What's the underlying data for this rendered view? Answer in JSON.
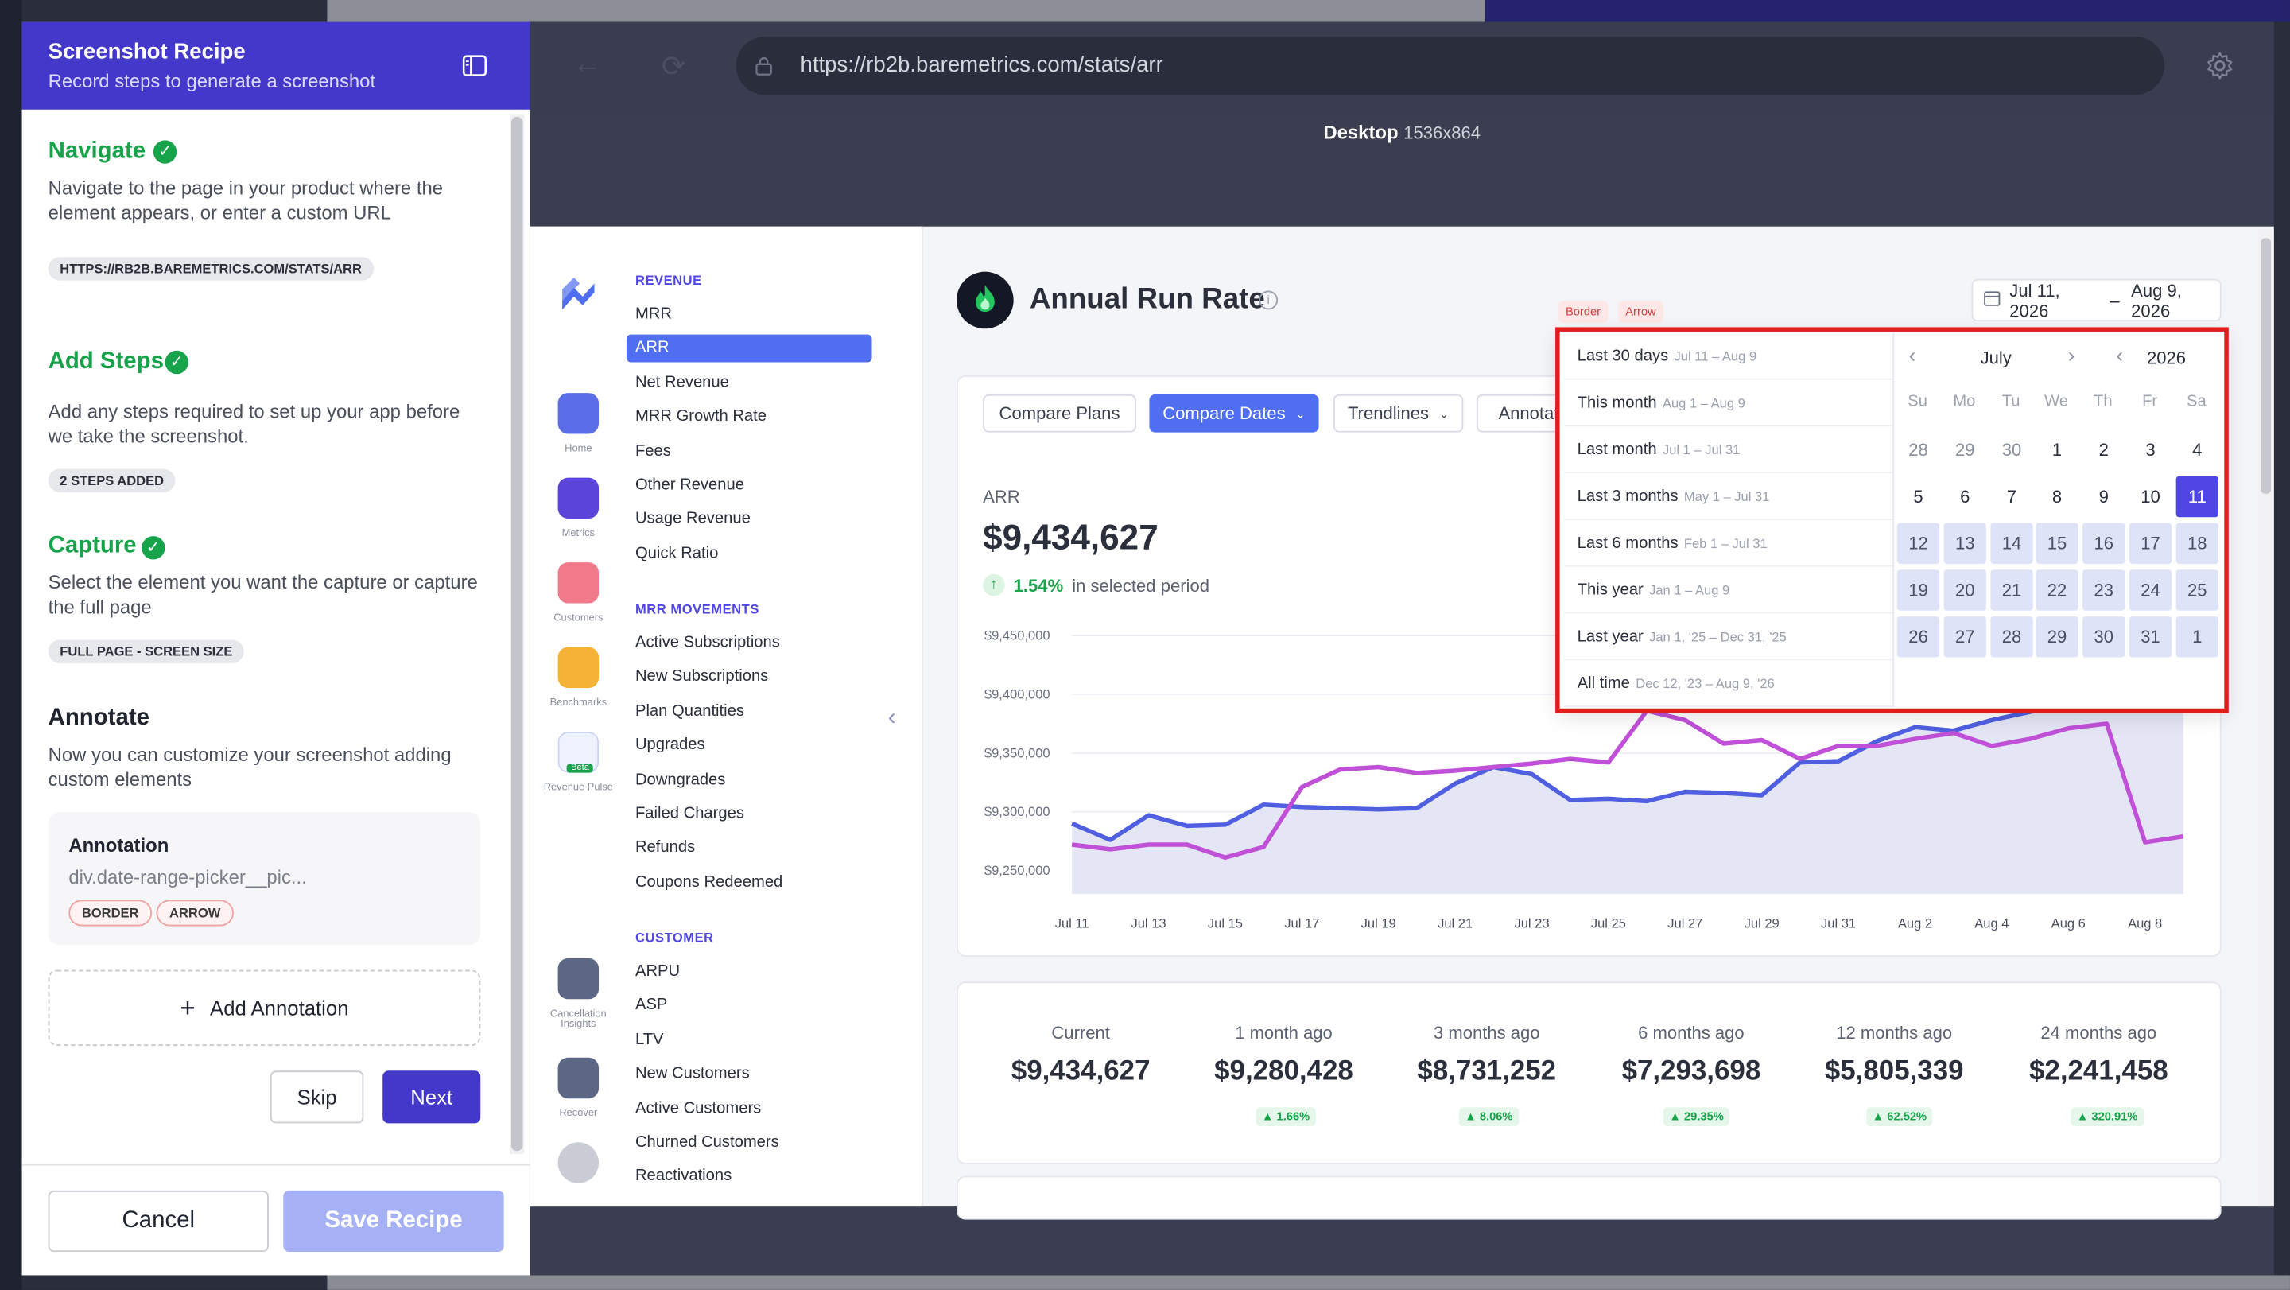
{
  "recipe": {
    "title": "Screenshot Recipe",
    "subtitle": "Record steps to generate a screenshot",
    "navigate": {
      "title": "Navigate",
      "desc": "Navigate to the page in your product where the element appears, or enter a custom URL",
      "chip": "HTTPS://RB2B.BAREMETRICS.COM/STATS/ARR"
    },
    "add_steps": {
      "title": "Add Steps",
      "desc": "Add any steps required to set up your app before we take the screenshot.",
      "chip": "2 STEPS ADDED"
    },
    "capture": {
      "title": "Capture",
      "desc": "Select the element you want the capture or capture the full page",
      "chip": "FULL PAGE - SCREEN SIZE"
    },
    "annotate": {
      "title": "Annotate",
      "desc": "Now you can customize your screenshot adding custom elements",
      "card_title": "Annotation",
      "card_selector": "div.date-range-picker__pic...",
      "tags": [
        "BORDER",
        "ARROW"
      ],
      "add_label": "Add Annotation"
    },
    "skip_label": "Skip",
    "next_label": "Next",
    "cancel_label": "Cancel",
    "save_label": "Save Recipe"
  },
  "browser": {
    "url": "https://rb2b.baremetrics.com/stats/arr",
    "device": "Desktop",
    "resolution": "1536x864"
  },
  "app": {
    "icons": [
      {
        "label": "Home",
        "icon": "home-icon",
        "color": "#5b6ee8"
      },
      {
        "label": "Metrics",
        "icon": "metrics-icon",
        "color": "#5b45d9"
      },
      {
        "label": "Customers",
        "icon": "customers-icon",
        "color": "#f07a8a"
      },
      {
        "label": "Benchmarks",
        "icon": "benchmarks-icon",
        "color": "#f5b335"
      },
      {
        "label": "Revenue Pulse",
        "icon": "pulse-icon",
        "color": "#4f6ef0",
        "badge": "Beta"
      },
      {
        "label": "Cancellation Insights",
        "icon": "cancellation-icon",
        "color": "#4a5578"
      },
      {
        "label": "Recover",
        "icon": "recover-icon",
        "color": "#4a5578"
      }
    ],
    "nav": {
      "revenue_head": "REVENUE",
      "revenue": [
        "MRR",
        "ARR",
        "Net Revenue",
        "MRR Growth Rate",
        "Fees",
        "Other Revenue",
        "Usage Revenue",
        "Quick Ratio"
      ],
      "movements_head": "MRR MOVEMENTS",
      "movements": [
        "Active Subscriptions",
        "New Subscriptions",
        "Plan Quantities",
        "Upgrades",
        "Downgrades",
        "Failed Charges",
        "Refunds",
        "Coupons Redeemed"
      ],
      "customer_head": "CUSTOMER",
      "customer": [
        "ARPU",
        "ASP",
        "LTV",
        "New Customers",
        "Active Customers",
        "Churned Customers",
        "Reactivations"
      ]
    },
    "page_title": "Annual Run Rate",
    "date_range": {
      "start": "Jul 11, 2026",
      "sep": "–",
      "end": "Aug 9, 2026"
    },
    "annotation_tags": [
      "Border",
      "Arrow"
    ],
    "toolbar": [
      "Compare Plans",
      "Compare Dates",
      "Trendlines",
      "Annotat"
    ],
    "metric": {
      "label": "ARR",
      "value": "$9,434,627",
      "delta": "1.54%",
      "delta_suffix": "in selected period"
    },
    "summary": [
      {
        "label": "Current",
        "value": "$9,434,627",
        "badge": ""
      },
      {
        "label": "1 month ago",
        "value": "$9,280,428",
        "badge": "1.66%"
      },
      {
        "label": "3 months ago",
        "value": "$8,731,252",
        "badge": "8.06%"
      },
      {
        "label": "6 months ago",
        "value": "$7,293,698",
        "badge": "29.35%"
      },
      {
        "label": "12 months ago",
        "value": "$5,805,339",
        "badge": "62.52%"
      },
      {
        "label": "24 months ago",
        "value": "$2,241,458",
        "badge": "320.91%"
      }
    ]
  },
  "calendar": {
    "presets": [
      {
        "label": "Last 30 days",
        "range": "Jul 11 – Aug 9"
      },
      {
        "label": "This month",
        "range": "Aug 1 – Aug 9"
      },
      {
        "label": "Last month",
        "range": "Jul 1 – Jul 31"
      },
      {
        "label": "Last 3 months",
        "range": "May 1 – Jul 31"
      },
      {
        "label": "Last 6 months",
        "range": "Feb 1 – Jul 31"
      },
      {
        "label": "This year",
        "range": "Jan 1 – Aug 9"
      },
      {
        "label": "Last year",
        "range": "Jan 1, '25 – Dec 31, '25"
      },
      {
        "label": "All time",
        "range": "Dec 12, '23 – Aug 9, '26"
      }
    ],
    "month": "July",
    "year": "2026",
    "dow": [
      "Su",
      "Mo",
      "Tu",
      "We",
      "Th",
      "Fr",
      "Sa"
    ],
    "weeks": [
      [
        "28",
        "29",
        "30",
        "1",
        "2",
        "3",
        "4"
      ],
      [
        "5",
        "6",
        "7",
        "8",
        "9",
        "10",
        "11"
      ],
      [
        "12",
        "13",
        "14",
        "15",
        "16",
        "17",
        "18"
      ],
      [
        "19",
        "20",
        "21",
        "22",
        "23",
        "24",
        "25"
      ],
      [
        "26",
        "27",
        "28",
        "29",
        "30",
        "31",
        "1"
      ]
    ],
    "selected": "11"
  },
  "chart_data": {
    "type": "line",
    "x": [
      "Jul 11",
      "Jul 12",
      "Jul 13",
      "Jul 14",
      "Jul 15",
      "Jul 16",
      "Jul 17",
      "Jul 18",
      "Jul 19",
      "Jul 20",
      "Jul 21",
      "Jul 22",
      "Jul 23",
      "Jul 24",
      "Jul 25",
      "Jul 26",
      "Jul 27",
      "Jul 28",
      "Jul 29",
      "Jul 30",
      "Jul 31",
      "Aug 1",
      "Aug 2",
      "Aug 3",
      "Aug 4",
      "Aug 5",
      "Aug 6",
      "Aug 7",
      "Aug 8",
      "Aug 9"
    ],
    "xticks": [
      "Jul 11",
      "Jul 13",
      "Jul 15",
      "Jul 17",
      "Jul 19",
      "Jul 21",
      "Jul 23",
      "Jul 25",
      "Jul 27",
      "Jul 29",
      "Jul 31",
      "Aug 2",
      "Aug 4",
      "Aug 6",
      "Aug 8"
    ],
    "yticks": [
      "$9,450,000",
      "$9,400,000",
      "$9,350,000",
      "$9,300,000",
      "$9,250,000"
    ],
    "ylim": [
      9230000,
      9460000
    ],
    "series": [
      {
        "color": "#4f5fe0",
        "values": [
          9290000,
          9276000,
          9297000,
          9288000,
          9289000,
          9306000,
          9304000,
          9303000,
          9302000,
          9303000,
          9324000,
          9338000,
          9332000,
          9310000,
          9311000,
          9309000,
          9317000,
          9316000,
          9314000,
          9342000,
          9343000,
          9360000,
          9372000,
          9369000,
          9378000,
          9385000,
          9392000,
          9398000,
          9405000,
          9410000
        ]
      },
      {
        "color": "#c050d8",
        "values": [
          9272000,
          9268000,
          9272000,
          9272000,
          9261000,
          9270000,
          9321000,
          9336000,
          9338000,
          9333000,
          9335000,
          9338000,
          9341000,
          9345000,
          9342000,
          9386000,
          9378000,
          9358000,
          9361000,
          9345000,
          9356000,
          9356000,
          9362000,
          9367000,
          9356000,
          9362000,
          9371000,
          9375000,
          9274000,
          9279000
        ]
      }
    ]
  }
}
